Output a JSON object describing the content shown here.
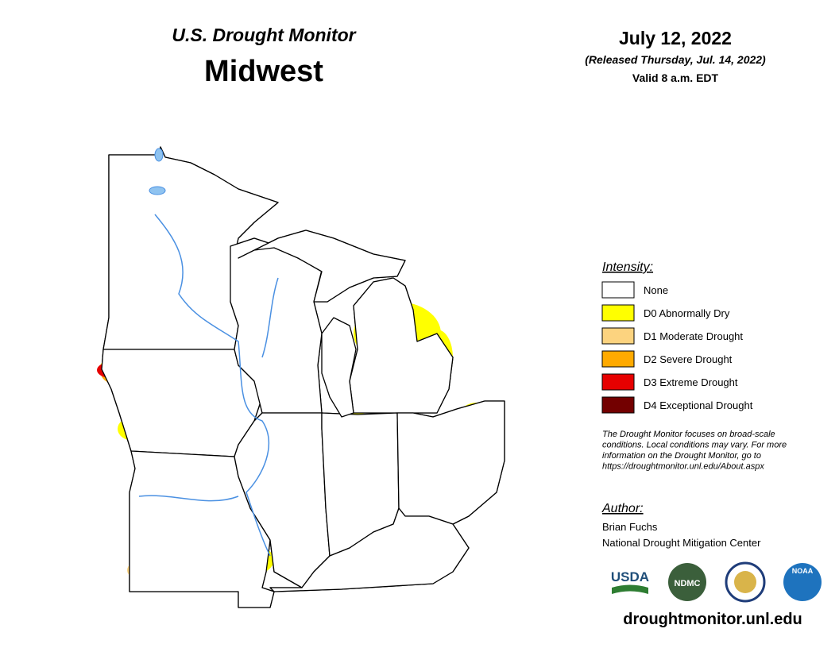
{
  "header": {
    "kicker": "U.S. Drought Monitor",
    "title": "Midwest",
    "date": "July 12, 2022",
    "released": "(Released Thursday, Jul. 14, 2022)",
    "valid": "Valid 8 a.m. EDT"
  },
  "legend": {
    "title": "Intensity:",
    "items": [
      {
        "label": "None",
        "color": "#ffffff"
      },
      {
        "label": "D0 Abnormally Dry",
        "color": "#ffff00"
      },
      {
        "label": "D1 Moderate Drought",
        "color": "#fcd37f"
      },
      {
        "label": "D2 Severe Drought",
        "color": "#ffaa00"
      },
      {
        "label": "D3 Extreme Drought",
        "color": "#e60000"
      },
      {
        "label": "D4 Exceptional Drought",
        "color": "#730000"
      }
    ]
  },
  "note": [
    "The Drought Monitor focuses on broad-scale",
    "conditions. Local conditions may vary. For more",
    "information on the Drought Monitor, go to",
    "https://droughtmonitor.unl.edu/About.aspx"
  ],
  "author": {
    "title": "Author:",
    "name": "Brian Fuchs",
    "organization": "National Drought Mitigation Center"
  },
  "logos": [
    "USDA",
    "NDMC",
    "NOAA"
  ],
  "footer": "droughtmonitor.unl.edu"
}
